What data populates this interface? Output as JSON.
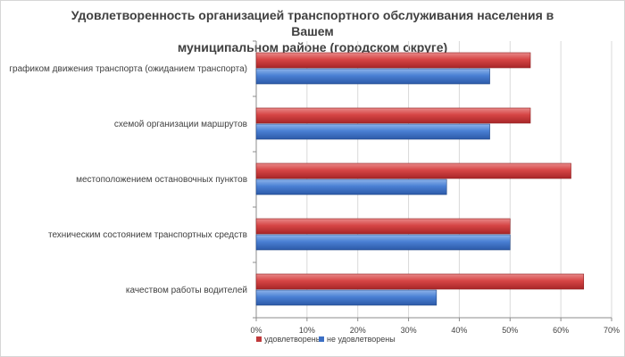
{
  "chart_data": {
    "type": "bar",
    "orientation": "horizontal",
    "title_line1": "Удовлетворенность организацией транспортного обслуживания населения в Вашем",
    "title_line2": "муниципальном районе (городском округе)",
    "categories": [
      "графиком движения транспорта (ожиданием транспорта)",
      "схемой организации маршрутов",
      "местоположением остановочных пунктов",
      "техническим состоянием транспортных средств",
      "качеством работы водителей"
    ],
    "series": [
      {
        "name": "удовлетворены",
        "color": "#c0393b",
        "values": [
          54,
          54,
          62,
          50,
          64.5
        ]
      },
      {
        "name": "не удовлетворены",
        "color": "#3b6fc4",
        "values": [
          46,
          46,
          37.5,
          50,
          35.5
        ]
      }
    ],
    "xlim": [
      0,
      70
    ],
    "xticks": [
      "0%",
      "10%",
      "20%",
      "30%",
      "40%",
      "50%",
      "60%",
      "70%"
    ],
    "grid": true,
    "legend_position": "bottom"
  }
}
